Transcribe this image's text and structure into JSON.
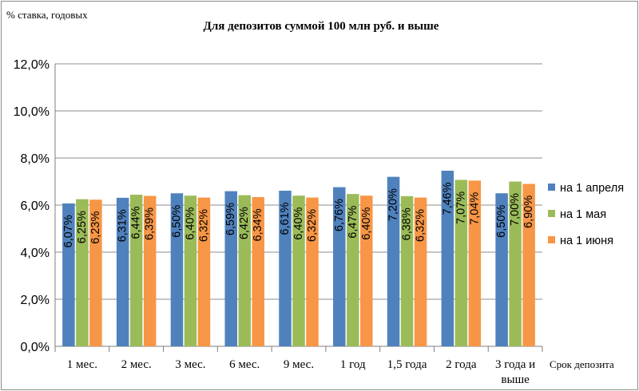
{
  "chart_data": {
    "type": "bar",
    "title": "Для депозитов суммой 100 млн руб. и выше",
    "ylabel": "% ставка, годовых",
    "xlabel": "Срок депозита",
    "ylim": [
      0,
      12
    ],
    "yticks": [
      "0,0%",
      "2,0%",
      "4,0%",
      "6,0%",
      "8,0%",
      "10,0%",
      "12,0%"
    ],
    "grid": true,
    "legend_position": "right",
    "categories": [
      "1 мес.",
      "2 мес.",
      "3 мес.",
      "6 мес.",
      "9 мес.",
      "1 год",
      "1,5 года",
      "2 года",
      "3 года и выше"
    ],
    "series": [
      {
        "name": "на 1 апреля",
        "color": "#4f81bd",
        "values": [
          6.07,
          6.31,
          6.5,
          6.59,
          6.61,
          6.76,
          7.2,
          7.46,
          6.5
        ],
        "labels": [
          "6,07%",
          "6,31%",
          "6,50%",
          "6,59%",
          "6,61%",
          "6,76%",
          "7,20%",
          "7,46%",
          "6,50%"
        ]
      },
      {
        "name": "на 1 мая",
        "color": "#9bbb59",
        "values": [
          6.25,
          6.44,
          6.4,
          6.42,
          6.4,
          6.47,
          6.38,
          7.07,
          7.0
        ],
        "labels": [
          "6,25%",
          "6,44%",
          "6,40%",
          "6,42%",
          "6,40%",
          "6,47%",
          "6,38%",
          "7,07%",
          "7,00%"
        ]
      },
      {
        "name": "на 1 июня",
        "color": "#f79646",
        "values": [
          6.23,
          6.39,
          6.32,
          6.34,
          6.32,
          6.4,
          6.32,
          7.04,
          6.9
        ],
        "labels": [
          "6,23%",
          "6,39%",
          "6,32%",
          "6,34%",
          "6,32%",
          "6,40%",
          "6,32%",
          "7,04%",
          "6,90%"
        ]
      }
    ]
  }
}
